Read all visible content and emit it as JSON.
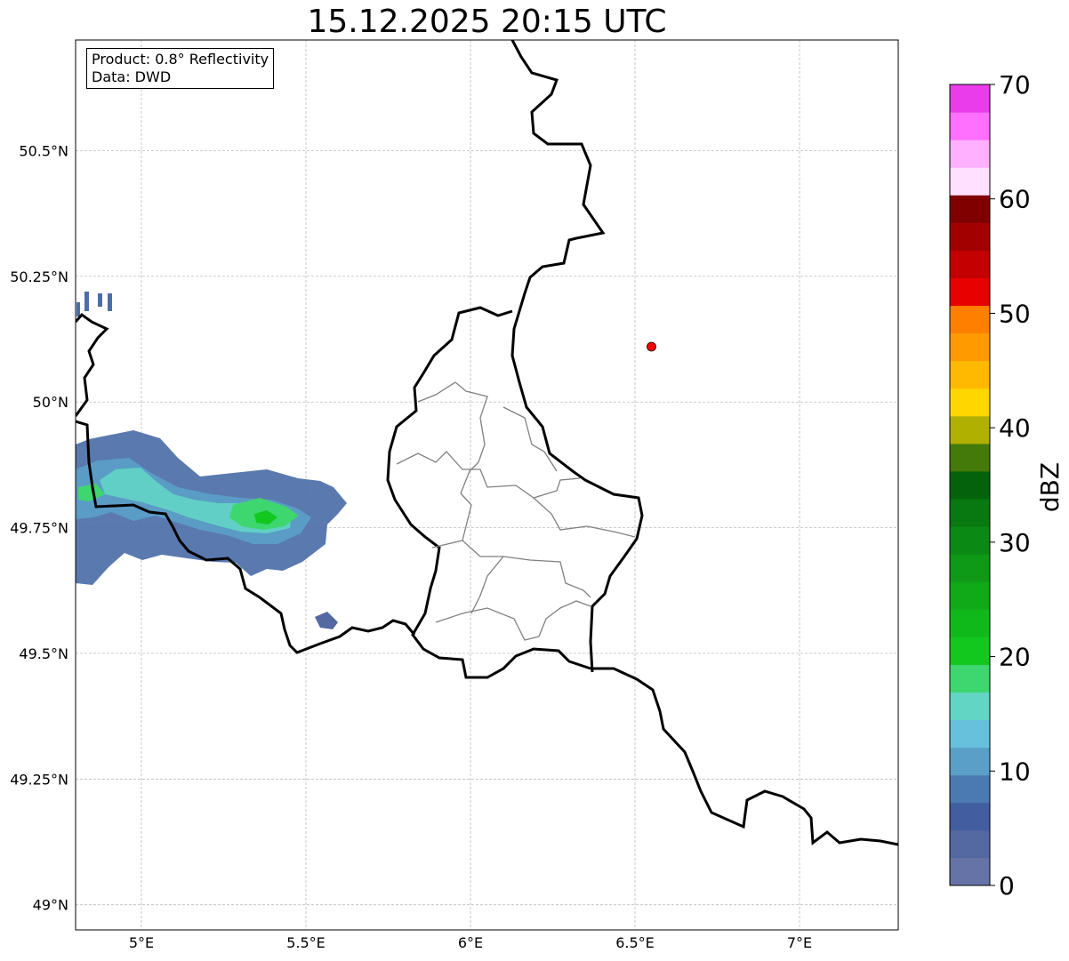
{
  "title": "15.12.2025 20:15 UTC",
  "info": {
    "product_line": "Product: 0.8° Reflectivity",
    "source_line": "Data: DWD"
  },
  "map": {
    "lon_range": [
      4.8,
      7.3
    ],
    "lat_range": [
      48.95,
      50.72
    ],
    "grid": true,
    "lat_ticks": [
      {
        "value": 50.5,
        "label": "50.5°N"
      },
      {
        "value": 50.25,
        "label": "50.25°N"
      },
      {
        "value": 50.0,
        "label": "50°N"
      },
      {
        "value": 49.75,
        "label": "49.75°N"
      },
      {
        "value": 49.5,
        "label": "49.5°N"
      },
      {
        "value": 49.25,
        "label": "49.25°N"
      },
      {
        "value": 49.0,
        "label": "49°N"
      }
    ],
    "lon_ticks": [
      {
        "value": 5.0,
        "label": "5°E"
      },
      {
        "value": 5.5,
        "label": "5.5°E"
      },
      {
        "value": 6.0,
        "label": "6°E"
      },
      {
        "value": 6.5,
        "label": "6.5°E"
      },
      {
        "value": 7.0,
        "label": "7°E"
      }
    ],
    "radar_site": {
      "lon": 6.55,
      "lat": 50.11,
      "color": "#ff0000"
    }
  },
  "colorbar": {
    "label": "dBZ",
    "min": 0,
    "max": 70,
    "step": 2.5,
    "ticks": [
      "0",
      "10",
      "20",
      "30",
      "40",
      "50",
      "60",
      "70"
    ],
    "colors": [
      "#6673a6",
      "#5468a2",
      "#425ea0",
      "#4b7ab2",
      "#5a9fc8",
      "#68c1dc",
      "#62d5c4",
      "#3ed66e",
      "#12c81e",
      "#10b91a",
      "#10a918",
      "#0e9916",
      "#0b8915",
      "#087810",
      "#05620c",
      "#437a0a",
      "#b0b000",
      "#ffd700",
      "#ffb900",
      "#ff9b00",
      "#ff7f00",
      "#e60000",
      "#c40000",
      "#a20000",
      "#800000",
      "#ffe0ff",
      "#ffb0ff",
      "#ff70ff",
      "#ea3cea"
    ]
  }
}
